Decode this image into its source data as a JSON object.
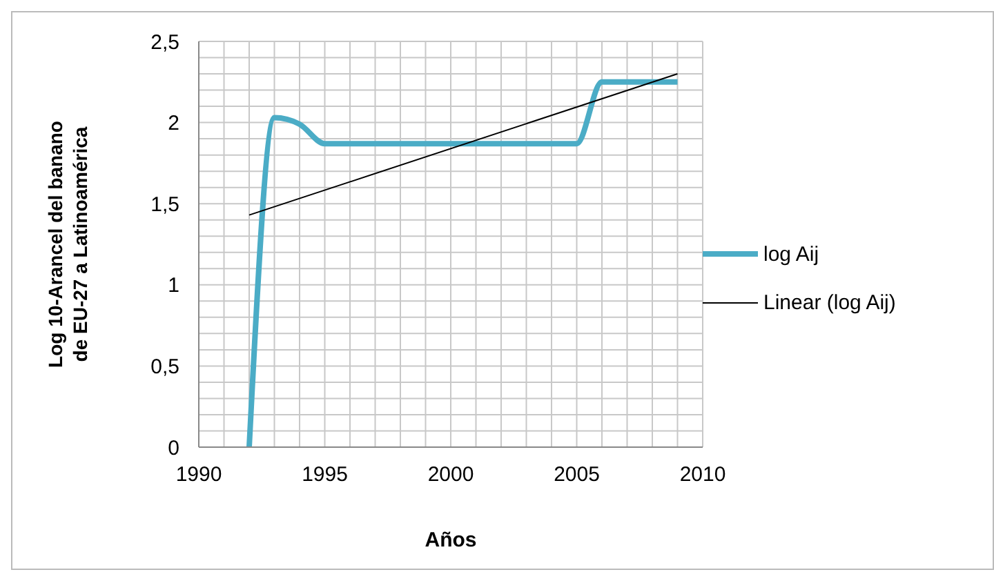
{
  "chart_data": {
    "type": "line",
    "xlabel": "Años",
    "ylabel": "Log 10-Arancel del banano de EU-27 a Latinoamérica",
    "xlim": [
      1990,
      2010
    ],
    "xticks": [
      1990,
      {
        "value": 1991,
        "label": null
      },
      {
        "value": 1992,
        "label": null
      },
      {
        "value": 1993,
        "label": null
      },
      {
        "value": 1994,
        "label": null
      },
      1995,
      {
        "value": 1996,
        "label": null
      },
      {
        "value": 1997,
        "label": null
      },
      {
        "value": 1998,
        "label": null
      },
      {
        "value": 1999,
        "label": null
      },
      2000,
      {
        "value": 2001,
        "label": null
      },
      {
        "value": 2002,
        "label": null
      },
      {
        "value": 2003,
        "label": null
      },
      {
        "value": 2004,
        "label": null
      },
      2005,
      {
        "value": 2006,
        "label": null
      },
      {
        "value": 2007,
        "label": null
      },
      {
        "value": 2008,
        "label": null
      },
      {
        "value": 2009,
        "label": null
      },
      2010
    ],
    "ylim": [
      0,
      2.5
    ],
    "yticks": [
      0,
      {
        "value": 0.1,
        "label": null
      },
      {
        "value": 0.2,
        "label": null
      },
      {
        "value": 0.3,
        "label": null
      },
      {
        "value": 0.4,
        "label": null
      },
      {
        "value": 0.5,
        "label": "0,5"
      },
      {
        "value": 0.6,
        "label": null
      },
      {
        "value": 0.7,
        "label": null
      },
      {
        "value": 0.8,
        "label": null
      },
      {
        "value": 0.9,
        "label": null
      },
      1,
      {
        "value": 1.1,
        "label": null
      },
      {
        "value": 1.2,
        "label": null
      },
      {
        "value": 1.3,
        "label": null
      },
      {
        "value": 1.4,
        "label": null
      },
      {
        "value": 1.5,
        "label": "1,5"
      },
      {
        "value": 1.6,
        "label": null
      },
      {
        "value": 1.7,
        "label": null
      },
      {
        "value": 1.8,
        "label": null
      },
      {
        "value": 1.9,
        "label": null
      },
      2,
      {
        "value": 2.1,
        "label": null
      },
      {
        "value": 2.2,
        "label": null
      },
      {
        "value": 2.3,
        "label": null
      },
      {
        "value": 2.4,
        "label": null
      },
      {
        "value": 2.5,
        "label": "2,5"
      }
    ],
    "grid": true,
    "legend": "right",
    "marker": "none",
    "series": [
      {
        "name": "log Aij",
        "color": "#4bacc6",
        "x": [
          1992,
          1993,
          1994,
          1995,
          1996,
          1997,
          1998,
          1999,
          2000,
          2001,
          2002,
          2003,
          2004,
          2005,
          2006,
          2007,
          2008,
          2009
        ],
        "values": [
          0,
          2.03,
          1.99,
          1.87,
          1.87,
          1.87,
          1.87,
          1.87,
          1.87,
          1.87,
          1.87,
          1.87,
          1.87,
          1.87,
          2.25,
          2.25,
          2.25,
          2.25
        ]
      },
      {
        "name": "Linear (log Aij)",
        "type": "line",
        "color": "#000000",
        "x": [
          1992,
          2009
        ],
        "values": [
          1.43,
          2.3
        ]
      }
    ]
  }
}
